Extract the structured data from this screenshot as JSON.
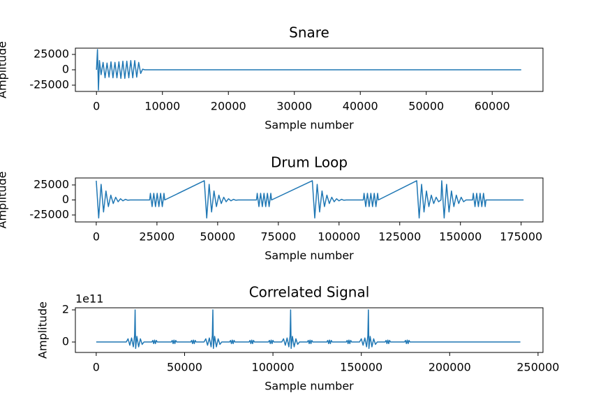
{
  "chart_data": [
    {
      "type": "line",
      "title": "Snare",
      "xlabel": "Sample number",
      "ylabel": "Amplitude",
      "color": "#1f77b4",
      "x": [
        0,
        150,
        300,
        450,
        700,
        1000,
        1300,
        1600,
        1900,
        2200,
        2500,
        2800,
        3100,
        3400,
        3700,
        4000,
        4300,
        4600,
        4900,
        5200,
        5500,
        5800,
        6100,
        6400,
        6700,
        7000,
        7300,
        64400
      ],
      "values": [
        0,
        33000,
        -33000,
        15000,
        -8000,
        12000,
        -13000,
        11000,
        -12000,
        13000,
        -13000,
        12000,
        -13000,
        13000,
        -14000,
        14000,
        -14000,
        14000,
        -13000,
        15000,
        -13000,
        15000,
        -12000,
        12000,
        -6000,
        1000,
        0,
        0
      ],
      "xlim": [
        -3200,
        67700
      ],
      "ylim": [
        -35200,
        35200
      ],
      "xticks": [
        0,
        10000,
        20000,
        30000,
        40000,
        50000,
        60000
      ],
      "yticks": [
        -25000,
        0,
        25000
      ]
    },
    {
      "type": "line",
      "title": "Drum Loop",
      "xlabel": "Sample number",
      "ylabel": "Amplitude",
      "color": "#1f77b4",
      "x": [
        0,
        1000,
        2000,
        3000,
        4000,
        5000,
        6000,
        7000,
        8000,
        9000,
        10000,
        11000,
        12000,
        13000,
        14000,
        22000,
        22300,
        23000,
        23700,
        24400,
        25100,
        25800,
        26500,
        27200,
        27900,
        28200,
        44500,
        45500,
        46500,
        47500,
        48500,
        49500,
        50500,
        51500,
        52500,
        53500,
        54500,
        55500,
        56500,
        57500,
        58500,
        66000,
        66300,
        67000,
        67700,
        68400,
        69100,
        69800,
        70500,
        71200,
        71900,
        72200,
        89000,
        90000,
        91000,
        92000,
        93000,
        94000,
        95000,
        96000,
        97000,
        98000,
        99000,
        100000,
        101000,
        102000,
        103000,
        110000,
        110300,
        111000,
        111700,
        112400,
        113100,
        113800,
        114500,
        115200,
        115900,
        116200,
        132000,
        133000,
        134000,
        135000,
        136000,
        137000,
        138000,
        139000,
        140000,
        141000,
        142000,
        142300,
        143300,
        144300,
        145300,
        146300,
        147300,
        148300,
        149300,
        150300,
        151300,
        152300,
        155000,
        155300,
        156000,
        156700,
        157400,
        158100,
        158800,
        159500,
        160200,
        160500,
        176000
      ],
      "values": [
        32000,
        -30000,
        26000,
        -20000,
        15000,
        -11000,
        8000,
        -6000,
        4500,
        -3000,
        2000,
        -1500,
        1000,
        -500,
        0,
        0,
        11000,
        -11000,
        11000,
        -11000,
        11000,
        -11000,
        11000,
        -11000,
        11000,
        0,
        32000,
        -30000,
        26000,
        -20000,
        15000,
        -11000,
        8000,
        -6000,
        4500,
        -3000,
        2000,
        -1500,
        1000,
        -500,
        0,
        0,
        11000,
        -11000,
        11000,
        -11000,
        11000,
        -11000,
        11000,
        -11000,
        11000,
        0,
        32000,
        -30000,
        26000,
        -20000,
        15000,
        -11000,
        8000,
        -6000,
        4500,
        -3000,
        2000,
        -1500,
        1000,
        -500,
        0,
        0,
        11000,
        -11000,
        11000,
        -11000,
        11000,
        -11000,
        11000,
        -11000,
        11000,
        0,
        32000,
        -30000,
        26000,
        -20000,
        15000,
        -11000,
        8000,
        -6000,
        4500,
        -3000,
        0,
        32000,
        -30000,
        26000,
        -20000,
        15000,
        -11000,
        8000,
        -6000,
        4500,
        -3000,
        0,
        0,
        11000,
        -11000,
        11000,
        -11000,
        11000,
        -11000,
        11000,
        -11000,
        0,
        0
      ],
      "xlim": [
        -8600,
        184000
      ],
      "ylim": [
        -36600,
        36600
      ],
      "xticks": [
        0,
        25000,
        50000,
        75000,
        100000,
        125000,
        150000,
        175000
      ],
      "yticks": [
        -25000,
        0,
        25000
      ]
    },
    {
      "type": "line",
      "title": "Correlated Signal",
      "xlabel": "Sample number",
      "ylabel": "Amplitude",
      "offset_text": "1e11",
      "color": "#1f77b4",
      "x": [
        0,
        17000,
        18000,
        19000,
        20000,
        21000,
        21700,
        22000,
        22300,
        23000,
        24000,
        25000,
        26000,
        27000,
        31500,
        32000,
        32500,
        33000,
        33500,
        34000,
        34500,
        42500,
        43000,
        43500,
        44000,
        44500,
        45000,
        45500,
        53500,
        54000,
        54500,
        55000,
        55500,
        56000,
        56500,
        61000,
        62000,
        63000,
        64000,
        65000,
        65700,
        66000,
        66300,
        67000,
        68000,
        69000,
        70000,
        71000,
        75500,
        76000,
        76500,
        77000,
        77500,
        78000,
        78500,
        86500,
        87000,
        87500,
        88000,
        88500,
        89000,
        89500,
        97500,
        98000,
        98500,
        99000,
        99500,
        100000,
        100500,
        105000,
        106000,
        107000,
        108000,
        109000,
        109700,
        110000,
        110300,
        111000,
        112000,
        113000,
        114000,
        115000,
        119500,
        120000,
        120500,
        121000,
        121500,
        122000,
        122500,
        130500,
        131000,
        131500,
        132000,
        132500,
        133000,
        133500,
        141500,
        142000,
        142500,
        143000,
        143500,
        144000,
        144500,
        149000,
        150000,
        151000,
        152000,
        153000,
        153700,
        154000,
        154300,
        155000,
        156000,
        157000,
        158000,
        159000,
        163500,
        164000,
        164500,
        165000,
        165500,
        166000,
        166500,
        174500,
        175000,
        175500,
        176000,
        176500,
        177000,
        177500,
        240000
      ],
      "values": [
        0,
        0,
        20000000000.0,
        -20000000000.0,
        25000000000.0,
        -30000000000.0,
        40000000000.0,
        200000000000.0,
        -40000000000.0,
        35000000000.0,
        -30000000000.0,
        20000000000.0,
        -15000000000.0,
        0,
        0,
        10000000000.0,
        -10000000000.0,
        12000000000.0,
        -10000000000.0,
        10000000000.0,
        0,
        0,
        10000000000.0,
        -10000000000.0,
        12000000000.0,
        -10000000000.0,
        10000000000.0,
        0,
        0,
        10000000000.0,
        -10000000000.0,
        12000000000.0,
        -10000000000.0,
        10000000000.0,
        0,
        0,
        20000000000.0,
        -20000000000.0,
        25000000000.0,
        -30000000000.0,
        40000000000.0,
        200000000000.0,
        -40000000000.0,
        35000000000.0,
        -30000000000.0,
        20000000000.0,
        -15000000000.0,
        0,
        0,
        10000000000.0,
        -10000000000.0,
        12000000000.0,
        -10000000000.0,
        10000000000.0,
        0,
        0,
        10000000000.0,
        -10000000000.0,
        12000000000.0,
        -10000000000.0,
        10000000000.0,
        0,
        0,
        10000000000.0,
        -10000000000.0,
        12000000000.0,
        -10000000000.0,
        10000000000.0,
        0,
        0,
        20000000000.0,
        -20000000000.0,
        25000000000.0,
        -30000000000.0,
        40000000000.0,
        200000000000.0,
        -40000000000.0,
        35000000000.0,
        -30000000000.0,
        20000000000.0,
        -15000000000.0,
        0,
        0,
        10000000000.0,
        -10000000000.0,
        12000000000.0,
        -10000000000.0,
        10000000000.0,
        0,
        0,
        10000000000.0,
        -10000000000.0,
        12000000000.0,
        -10000000000.0,
        10000000000.0,
        0,
        0,
        10000000000.0,
        -10000000000.0,
        12000000000.0,
        -10000000000.0,
        10000000000.0,
        0,
        0,
        20000000000.0,
        -20000000000.0,
        25000000000.0,
        -30000000000.0,
        40000000000.0,
        200000000000.0,
        -40000000000.0,
        35000000000.0,
        -30000000000.0,
        20000000000.0,
        -15000000000.0,
        0,
        0,
        10000000000.0,
        -10000000000.0,
        12000000000.0,
        -10000000000.0,
        10000000000.0,
        0,
        0,
        10000000000.0,
        -10000000000.0,
        12000000000.0,
        -10000000000.0,
        10000000000.0,
        0,
        0
      ],
      "xlim": [
        -11800,
        252800
      ],
      "ylim": [
        -65000000000.0,
        213000000000.0
      ],
      "xticks": [
        0,
        50000,
        100000,
        150000,
        200000,
        250000
      ],
      "yticks": [
        0,
        {
          "value": 200000000000.0,
          "label": "2"
        }
      ]
    }
  ]
}
